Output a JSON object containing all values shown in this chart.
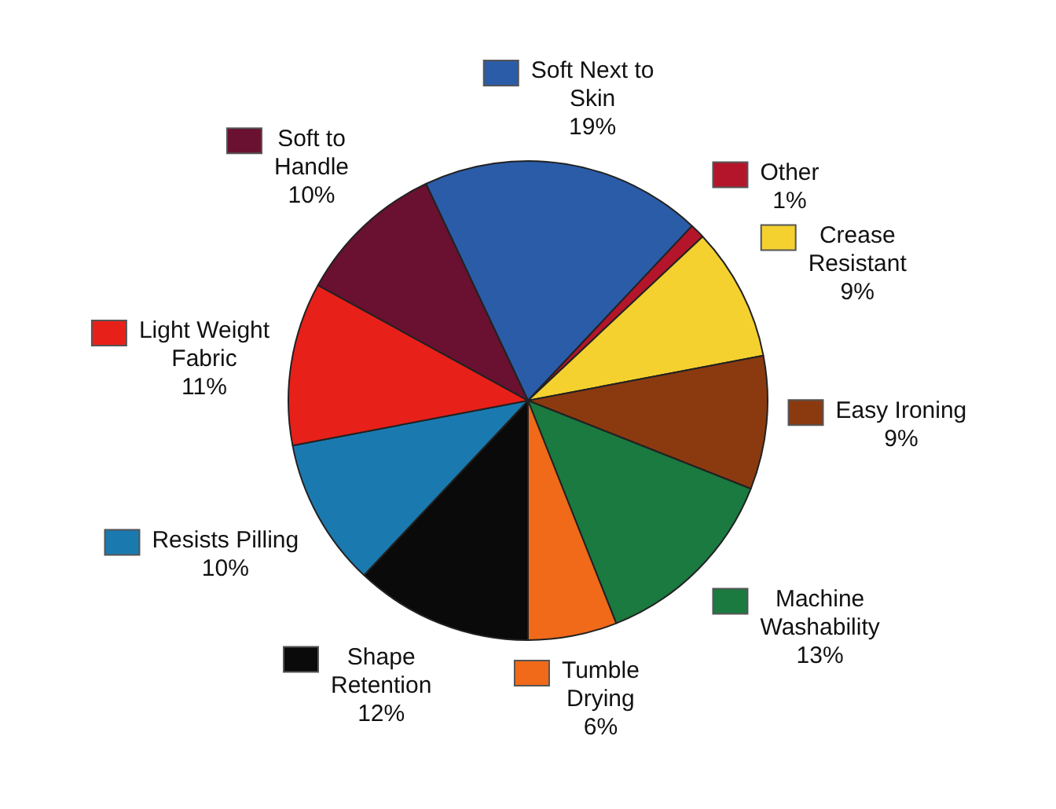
{
  "chart_data": {
    "type": "pie",
    "categories": [
      "Soft Next to Skin",
      "Other",
      "Crease Resistant",
      "Easy Ironing",
      "Machine Washability",
      "Tumble Drying",
      "Shape Retention",
      "Resists Pilling",
      "Light Weight Fabric",
      "Soft to Handle"
    ],
    "values": [
      19,
      1,
      9,
      9,
      13,
      6,
      12,
      10,
      11,
      10
    ],
    "value_labels": [
      "19%",
      "1%",
      "9%",
      "9%",
      "13%",
      "6%",
      "12%",
      "10%",
      "11%",
      "10%"
    ],
    "colors": [
      "#2a5ca8",
      "#b5152a",
      "#f5d130",
      "#8b3a10",
      "#1a7a40",
      "#f06a1a",
      "#0a0a0a",
      "#1a7ab0",
      "#e8201a",
      "#6a1030"
    ],
    "legend": true
  }
}
